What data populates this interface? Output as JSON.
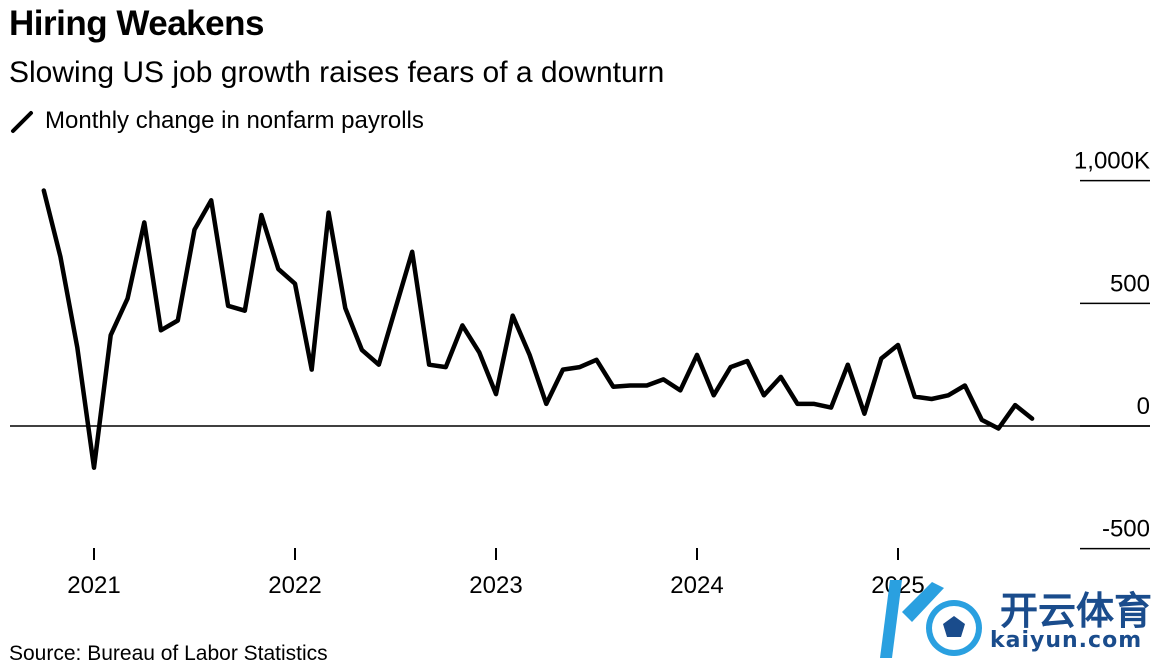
{
  "chart_data": {
    "type": "line",
    "title": "Hiring Weakens",
    "subtitle": "Slowing US job growth raises fears of a downturn",
    "legend": [
      "Monthly change in nonfarm payrolls"
    ],
    "source": "Source: Bureau of Labor Statistics",
    "ylim": [
      -500,
      1000
    ],
    "yticks": [
      1000,
      500,
      0,
      -500
    ],
    "ytick_labels": [
      "1,000K",
      "500",
      "0",
      "-500"
    ],
    "xticks": [
      2021,
      2022,
      2023,
      2024,
      2025
    ],
    "xtick_labels": [
      "2021",
      "2022",
      "2023",
      "2024",
      "2025"
    ],
    "series": [
      {
        "name": "Monthly change in nonfarm payrolls",
        "x": [
          2020.75,
          2020.833,
          2020.917,
          2021.0,
          2021.083,
          2021.167,
          2021.25,
          2021.333,
          2021.417,
          2021.5,
          2021.583,
          2021.667,
          2021.75,
          2021.833,
          2021.917,
          2022.0,
          2022.083,
          2022.167,
          2022.25,
          2022.333,
          2022.417,
          2022.5,
          2022.583,
          2022.667,
          2022.75,
          2022.833,
          2022.917,
          2023.0,
          2023.083,
          2023.167,
          2023.25,
          2023.333,
          2023.417,
          2023.5,
          2023.583,
          2023.667,
          2023.75,
          2023.833,
          2023.917,
          2024.0,
          2024.083,
          2024.167,
          2024.25,
          2024.333,
          2024.417,
          2024.5,
          2024.583,
          2024.667,
          2024.75,
          2024.833,
          2024.917,
          2025.0,
          2025.083,
          2025.167,
          2025.25,
          2025.333,
          2025.417,
          2025.5,
          2025.583,
          2025.667
        ],
        "values": [
          960,
          690,
          320,
          -170,
          370,
          520,
          830,
          390,
          430,
          800,
          920,
          490,
          470,
          860,
          640,
          580,
          230,
          870,
          480,
          310,
          250,
          480,
          710,
          250,
          240,
          410,
          300,
          130,
          450,
          290,
          90,
          230,
          240,
          270,
          160,
          165,
          165,
          190,
          145,
          290,
          125,
          240,
          265,
          125,
          200,
          90,
          90,
          75,
          250,
          50,
          275,
          330,
          120,
          110,
          125,
          165,
          25,
          -10,
          85,
          30
        ]
      }
    ]
  },
  "watermark": {
    "cn": "开云体育",
    "en": "kaiyun.com"
  }
}
